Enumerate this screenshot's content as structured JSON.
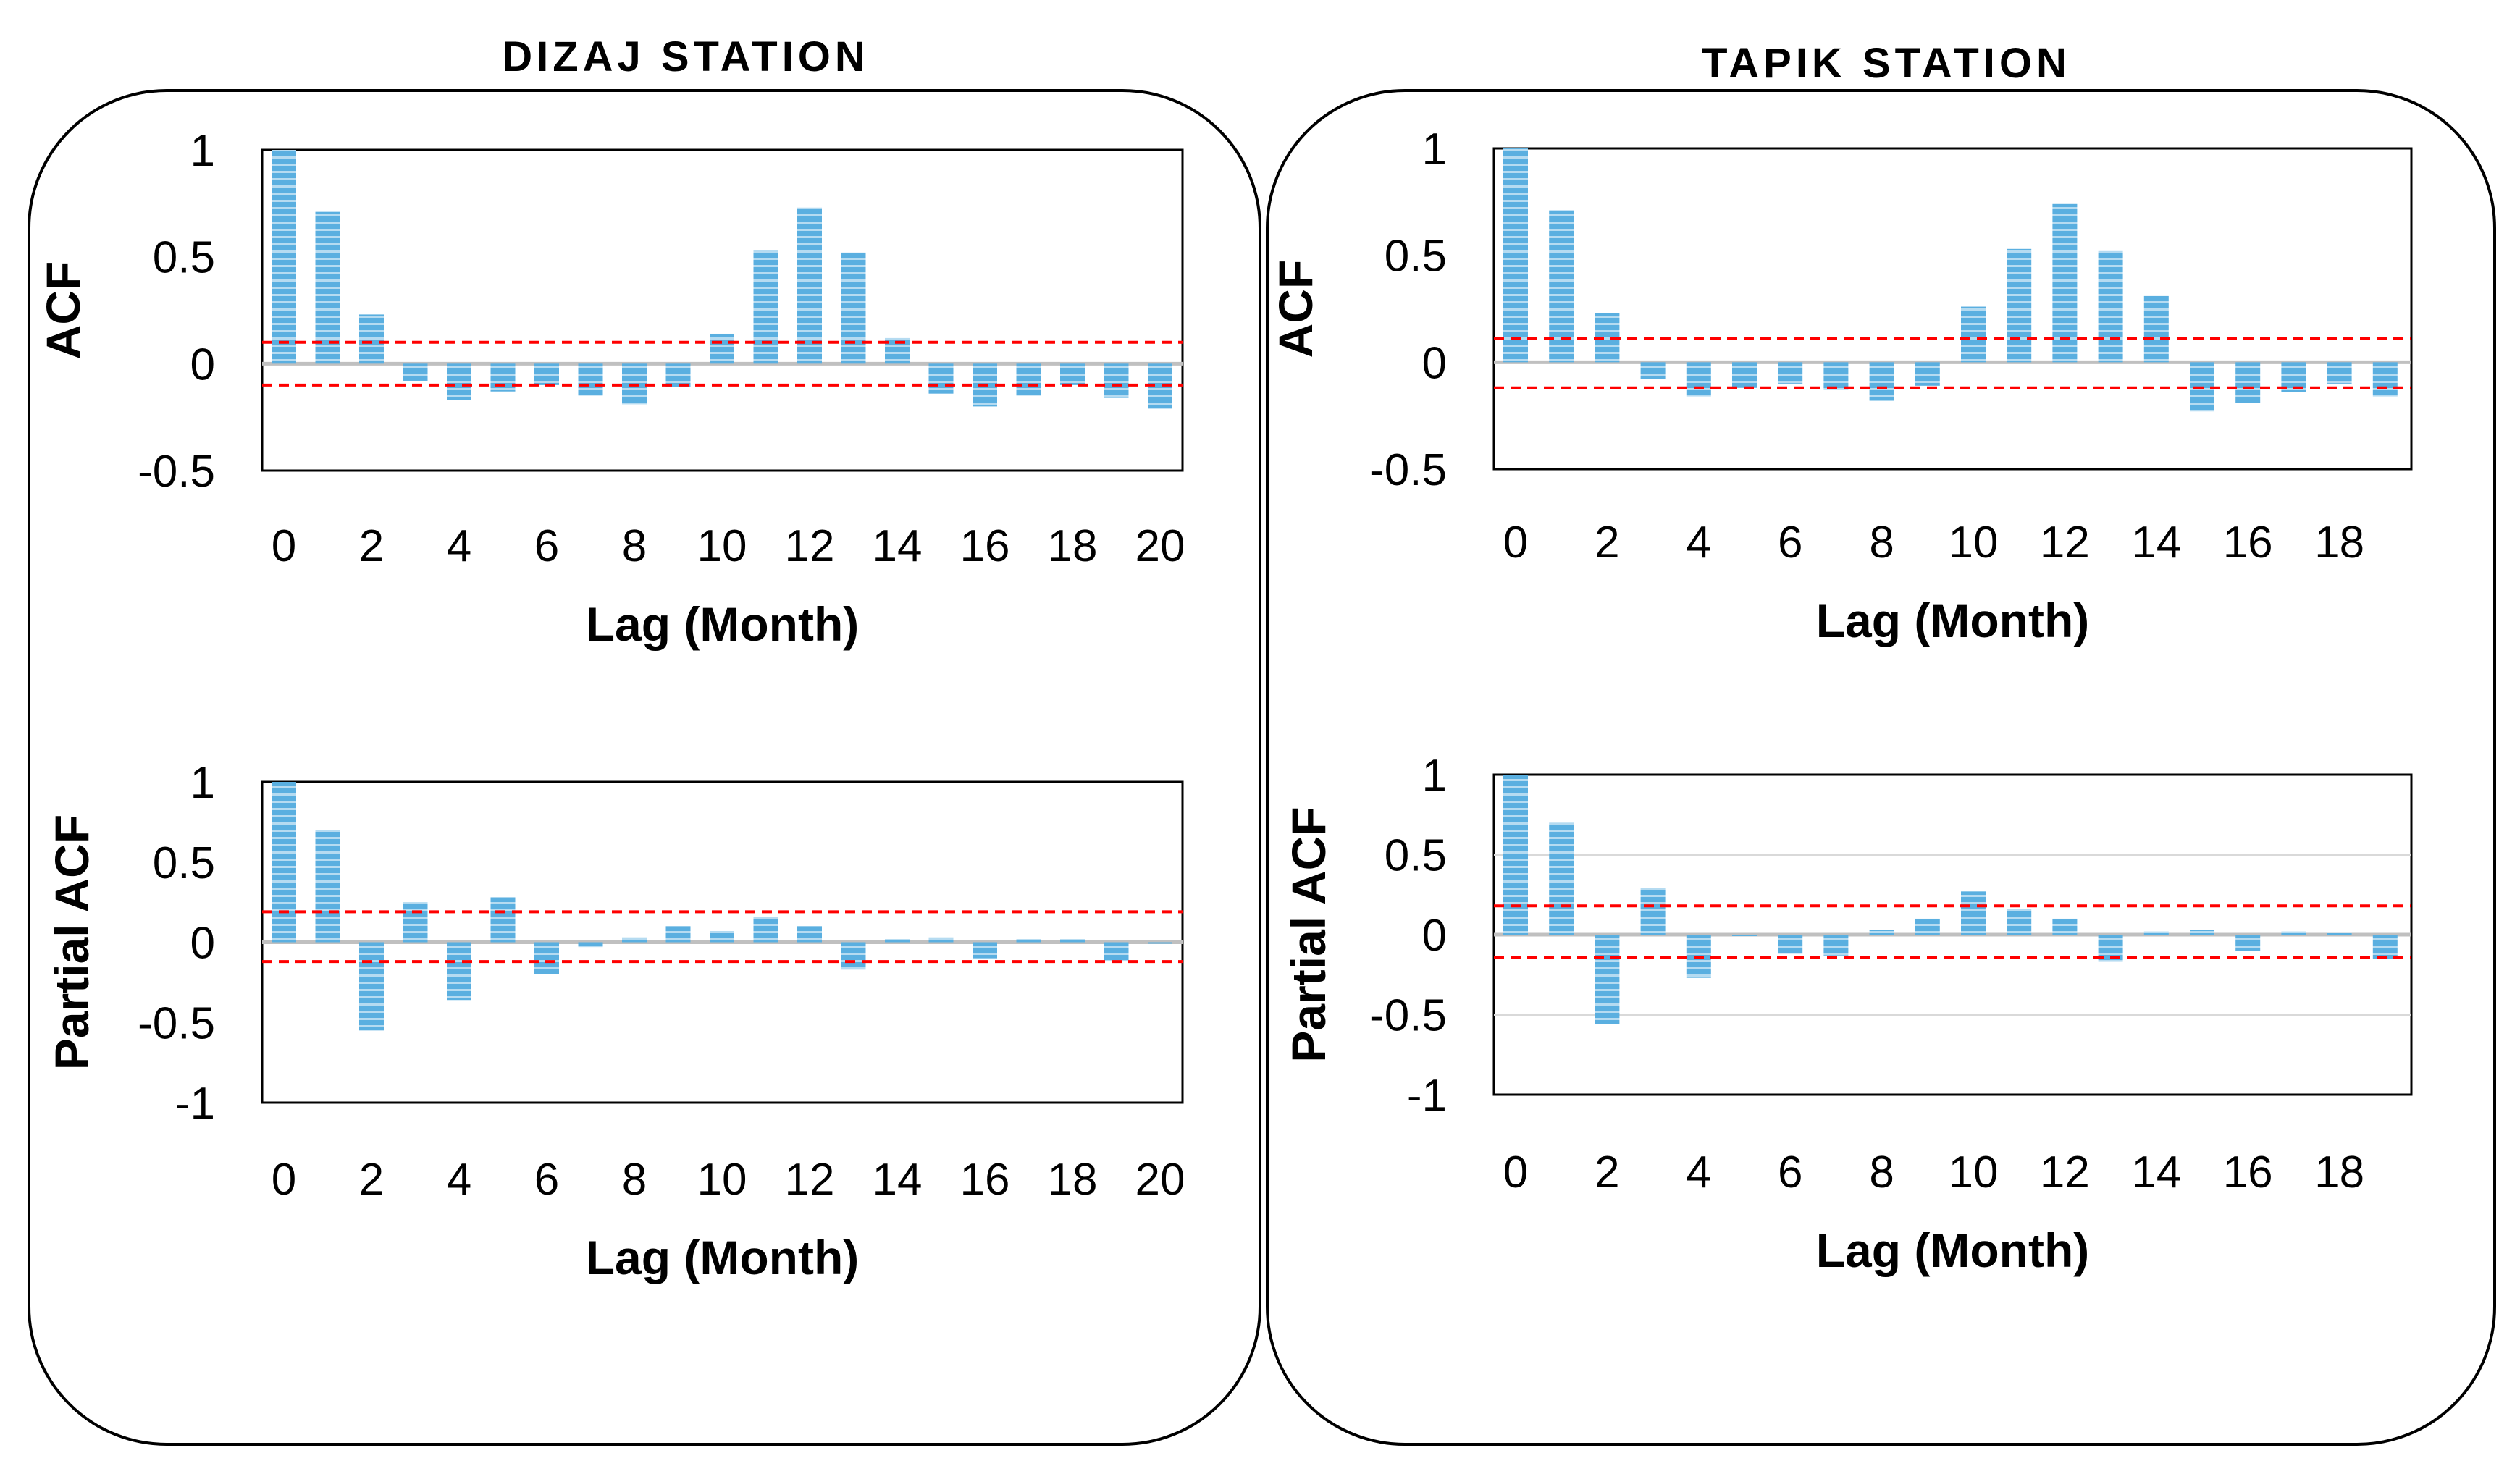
{
  "panels": [
    {
      "title": "DIZAJ STATION"
    },
    {
      "title": "TAPIK STATION"
    }
  ],
  "colors": {
    "bar": "#5aafe0",
    "bar_stripe": "#ffffff",
    "confidence": "#ff0000",
    "zero_line": "#c0c0c0",
    "frame": "#000000"
  },
  "chart_data": [
    {
      "station": "DIZAJ STATION",
      "type": "bar",
      "ylabel": "ACF",
      "xlabel": "Lag (Month)",
      "x": [
        0,
        1,
        2,
        3,
        4,
        5,
        6,
        7,
        8,
        9,
        10,
        11,
        12,
        13,
        14,
        15,
        16,
        17,
        18,
        19,
        20
      ],
      "values": [
        1.0,
        0.71,
        0.23,
        -0.08,
        -0.17,
        -0.13,
        -0.1,
        -0.15,
        -0.19,
        -0.11,
        0.14,
        0.53,
        0.73,
        0.52,
        0.12,
        -0.14,
        -0.2,
        -0.15,
        -0.1,
        -0.16,
        -0.21
      ],
      "xticks": [
        "0",
        "2",
        "4",
        "6",
        "8",
        "10",
        "12",
        "14",
        "16",
        "18",
        "20"
      ],
      "yticks": [
        "1",
        "0.5",
        "0",
        "-0.5"
      ],
      "ylim": [
        -0.5,
        1.0
      ],
      "confidence_bounds": [
        0.1,
        -0.1
      ]
    },
    {
      "station": "DIZAJ STATION",
      "type": "bar",
      "ylabel": "Partial ACF",
      "xlabel": "Lag (Month)",
      "x": [
        0,
        1,
        2,
        3,
        4,
        5,
        6,
        7,
        8,
        9,
        10,
        11,
        12,
        13,
        14,
        15,
        16,
        17,
        18,
        19,
        20
      ],
      "values": [
        1.0,
        0.7,
        -0.55,
        0.25,
        -0.36,
        0.28,
        -0.2,
        -0.03,
        0.03,
        0.1,
        0.07,
        0.16,
        0.1,
        -0.17,
        0.02,
        0.03,
        -0.1,
        0.02,
        0.02,
        -0.12,
        0.0
      ],
      "xticks": [
        "0",
        "2",
        "4",
        "6",
        "8",
        "10",
        "12",
        "14",
        "16",
        "18",
        "20"
      ],
      "yticks": [
        "1",
        "0.5",
        "0",
        "-0.5",
        "-1"
      ],
      "ylim": [
        -1.0,
        1.0
      ],
      "confidence_bounds": [
        0.19,
        -0.12
      ]
    },
    {
      "station": "TAPIK STATION",
      "type": "bar",
      "ylabel": "ACF",
      "xlabel": "Lag (Month)",
      "x": [
        0,
        1,
        2,
        3,
        4,
        5,
        6,
        7,
        8,
        9,
        10,
        11,
        12,
        13,
        14,
        15,
        16,
        17,
        18,
        19
      ],
      "values": [
        1.0,
        0.71,
        0.23,
        -0.08,
        -0.16,
        -0.12,
        -0.1,
        -0.13,
        -0.18,
        -0.11,
        0.26,
        0.53,
        0.74,
        0.52,
        0.31,
        -0.23,
        -0.19,
        -0.14,
        -0.1,
        -0.16
      ],
      "xticks": [
        "0",
        "2",
        "4",
        "6",
        "8",
        "10",
        "12",
        "14",
        "16",
        "18"
      ],
      "yticks": [
        "1",
        "0.5",
        "0",
        "-0.5"
      ],
      "ylim": [
        -0.5,
        1.0
      ],
      "confidence_bounds": [
        0.11,
        -0.12
      ]
    },
    {
      "station": "TAPIK STATION",
      "type": "bar",
      "ylabel": "Partial ACF",
      "xlabel": "Lag (Month)",
      "x": [
        0,
        1,
        2,
        3,
        4,
        5,
        6,
        7,
        8,
        9,
        10,
        11,
        12,
        13,
        14,
        15,
        16,
        17,
        18,
        19
      ],
      "values": [
        1.0,
        0.7,
        -0.56,
        0.29,
        -0.27,
        0.0,
        -0.12,
        -0.13,
        0.03,
        0.1,
        0.27,
        0.16,
        0.1,
        -0.17,
        0.02,
        0.03,
        -0.1,
        0.02,
        0.01,
        -0.15
      ],
      "xticks": [
        "0",
        "2",
        "4",
        "6",
        "8",
        "10",
        "12",
        "14",
        "16",
        "18"
      ],
      "yticks": [
        "1",
        "0.5",
        "0",
        "-0.5",
        "-1"
      ],
      "ylim": [
        -1.0,
        1.0
      ],
      "confidence_bounds": [
        0.18,
        -0.14
      ]
    }
  ]
}
